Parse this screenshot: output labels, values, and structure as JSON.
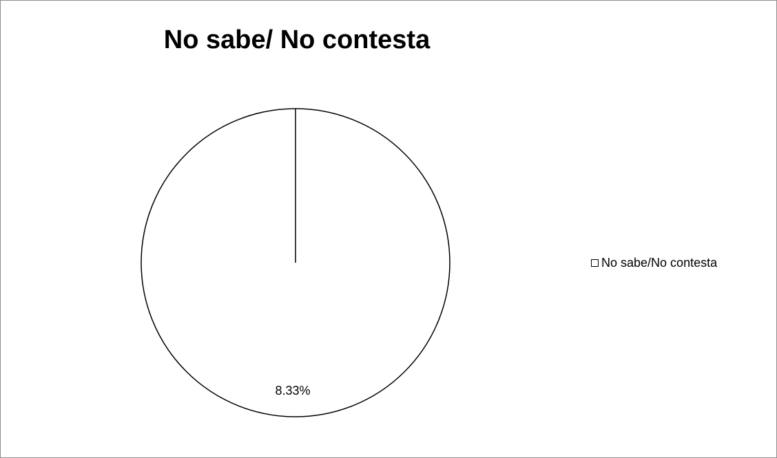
{
  "chart_data": {
    "type": "pie",
    "title": "No sabe/ No contesta",
    "slices": [
      {
        "label": "No sabe/No contesta",
        "value": 8.33,
        "data_label": "8.33%",
        "color": "#ffffff"
      }
    ],
    "legend": {
      "placement": "right",
      "entries": [
        "No sabe/No contesta"
      ]
    },
    "colors": {
      "stroke": "#000000",
      "fill": "#ffffff",
      "frame": "#8c8c8c"
    }
  }
}
